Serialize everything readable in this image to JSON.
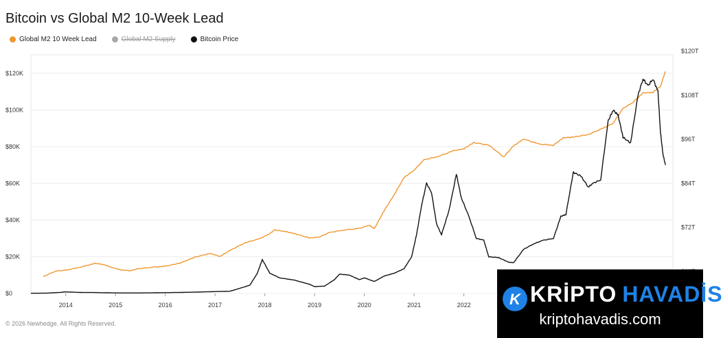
{
  "title": "Bitcoin vs Global M2 10-Week Lead",
  "legend": [
    {
      "label": "Global M2 10 Week Lead",
      "color": "#f0962f",
      "enabled": true
    },
    {
      "label": "Global M2 Supply",
      "color": "#a8a8a8",
      "enabled": false
    },
    {
      "label": "Bitcoin Price",
      "color": "#111111",
      "enabled": true
    }
  ],
  "footer": "© 2026 Newhedge. All Rights Reserved.",
  "watermark": {
    "brand_part1": "KRİPTO",
    "brand_part2": "HAVADİS",
    "domain": "kriptohavadis.com",
    "icon_letter": "K"
  },
  "chart_data": {
    "type": "line",
    "title": "Bitcoin vs Global M2 10-Week Lead",
    "x_label": "",
    "y_label": "",
    "y2_label": "",
    "xlim": [
      2013.3,
      2026.2
    ],
    "ylim": [
      0,
      130000
    ],
    "y2lim": [
      54,
      119
    ],
    "x_ticks": [
      2014,
      2015,
      2016,
      2017,
      2018,
      2019,
      2020,
      2021,
      2022
    ],
    "x_tick_labels": [
      "2014",
      "2015",
      "2016",
      "2017",
      "2018",
      "2019",
      "2020",
      "2021",
      "2022"
    ],
    "y_ticks": [
      0,
      20000,
      40000,
      60000,
      80000,
      100000,
      120000
    ],
    "y_tick_labels": [
      "$0",
      "$20K",
      "$40K",
      "$60K",
      "$80K",
      "$100K",
      "$120K"
    ],
    "y2_ticks": [
      60,
      72,
      84,
      96,
      108,
      120
    ],
    "y2_tick_labels": [
      "$60T",
      "$72T",
      "$84T",
      "$96T",
      "$108T",
      "$120T"
    ],
    "series": [
      {
        "name": "Global M2 10 Week Lead",
        "axis": "right",
        "color": "#f0962f",
        "x": [
          2013.55,
          2013.8,
          2014.0,
          2014.3,
          2014.6,
          2014.75,
          2014.9,
          2015.1,
          2015.3,
          2015.45,
          2015.7,
          2016.0,
          2016.3,
          2016.6,
          2016.9,
          2017.1,
          2017.3,
          2017.6,
          2017.9,
          2018.1,
          2018.2,
          2018.4,
          2018.6,
          2018.9,
          2019.1,
          2019.3,
          2019.6,
          2019.9,
          2020.1,
          2020.2,
          2020.4,
          2020.6,
          2020.8,
          2021.0,
          2021.2,
          2021.5,
          2021.8,
          2022.0,
          2022.2,
          2022.5,
          2022.8,
          2023.0,
          2023.2,
          2023.5,
          2023.8,
          2024.0,
          2024.2,
          2024.5,
          2024.8,
          2025.0,
          2025.2,
          2025.4,
          2025.6,
          2025.8,
          2025.95,
          2026.05
        ],
        "y": [
          58.6,
          60.1,
          60.3,
          61.2,
          62.2,
          61.9,
          61.2,
          60.4,
          60.2,
          60.7,
          61.1,
          61.4,
          62.3,
          63.9,
          64.9,
          64.1,
          65.7,
          67.8,
          68.9,
          70.3,
          71.3,
          70.9,
          70.3,
          69.1,
          69.4,
          70.6,
          71.3,
          71.7,
          72.6,
          71.6,
          76.6,
          80.9,
          85.6,
          87.6,
          90.4,
          91.4,
          92.9,
          93.4,
          95.1,
          94.4,
          91.2,
          94.2,
          96.1,
          94.7,
          94.4,
          96.4,
          96.6,
          97.3,
          99.0,
          100.4,
          104.4,
          106.1,
          108.6,
          108.8,
          110.4,
          114.5
        ]
      },
      {
        "name": "Bitcoin Price",
        "axis": "left",
        "color": "#111111",
        "x": [
          2013.3,
          2013.6,
          2013.9,
          2014.0,
          2014.3,
          2014.6,
          2015.0,
          2015.5,
          2016.0,
          2016.5,
          2017.0,
          2017.3,
          2017.5,
          2017.7,
          2017.85,
          2017.95,
          2018.1,
          2018.3,
          2018.6,
          2018.9,
          2019.0,
          2019.2,
          2019.4,
          2019.5,
          2019.7,
          2019.9,
          2020.0,
          2020.2,
          2020.4,
          2020.6,
          2020.8,
          2020.95,
          2021.05,
          2021.15,
          2021.25,
          2021.35,
          2021.45,
          2021.55,
          2021.7,
          2021.85,
          2021.95,
          2022.1,
          2022.25,
          2022.4,
          2022.5,
          2022.7,
          2022.9,
          2023.0,
          2023.2,
          2023.4,
          2023.6,
          2023.8,
          2023.95,
          2024.05,
          2024.2,
          2024.35,
          2024.5,
          2024.6,
          2024.75,
          2024.9,
          2025.0,
          2025.1,
          2025.2,
          2025.35,
          2025.5,
          2025.6,
          2025.7,
          2025.8,
          2025.9,
          2025.95,
          2026.0,
          2026.05
        ],
        "y": [
          100,
          150,
          600,
          850,
          550,
          500,
          280,
          250,
          430,
          650,
          1000,
          1200,
          2800,
          4500,
          11000,
          18500,
          11000,
          8500,
          7200,
          5000,
          3700,
          4000,
          7500,
          10500,
          10000,
          7500,
          8500,
          6500,
          9500,
          11000,
          13500,
          20000,
          32000,
          48000,
          60000,
          55000,
          38000,
          32000,
          45000,
          65000,
          52000,
          42000,
          30000,
          29000,
          20000,
          19500,
          17000,
          16800,
          24000,
          27000,
          29000,
          30000,
          42000,
          43000,
          66000,
          64000,
          58000,
          60000,
          62000,
          94000,
          100000,
          97000,
          85000,
          82000,
          108000,
          117000,
          113000,
          117000,
          110000,
          88000,
          76000,
          70000
        ]
      }
    ]
  }
}
